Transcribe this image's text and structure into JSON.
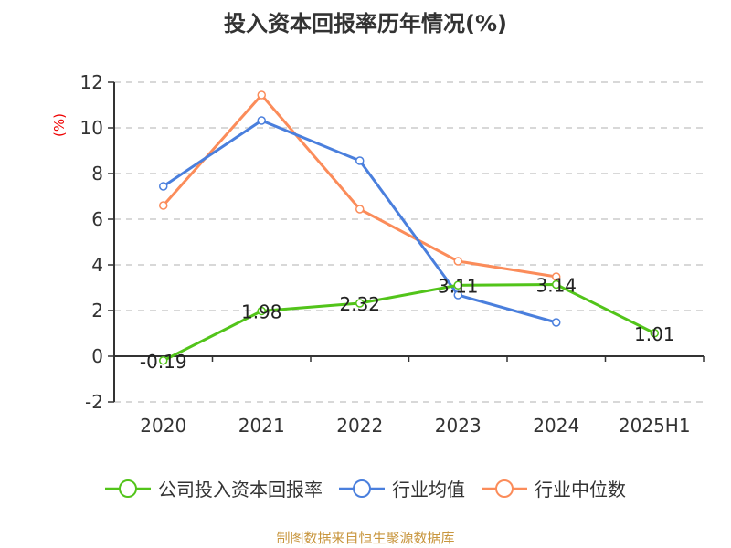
{
  "chart_data": {
    "type": "line",
    "title": "投入资本回报率历年情况(%)",
    "ylabel": "(%)",
    "categories": [
      "2020",
      "2021",
      "2022",
      "2023",
      "2024",
      "2025H1"
    ],
    "ylim": [
      -2,
      12
    ],
    "yticks": [
      -2,
      0,
      2,
      4,
      6,
      8,
      10,
      12
    ],
    "grid": true,
    "legend_position": "bottom",
    "series": [
      {
        "name": "公司投入资本回报率",
        "color": "#52c41a",
        "values": [
          -0.19,
          1.98,
          2.32,
          3.11,
          3.14,
          1.01
        ],
        "labels": [
          "-0.19",
          "1.98",
          "2.32",
          "3.11",
          "3.14",
          "1.01"
        ]
      },
      {
        "name": "行业均值",
        "color": "#4a7fdd",
        "values": [
          7.44,
          10.32,
          8.56,
          2.68,
          1.48,
          null
        ]
      },
      {
        "name": "行业中位数",
        "color": "#fb8c5a",
        "values": [
          6.6,
          11.44,
          6.44,
          4.16,
          3.48,
          null
        ]
      }
    ]
  },
  "source": "制图数据来自恒生聚源数据库"
}
